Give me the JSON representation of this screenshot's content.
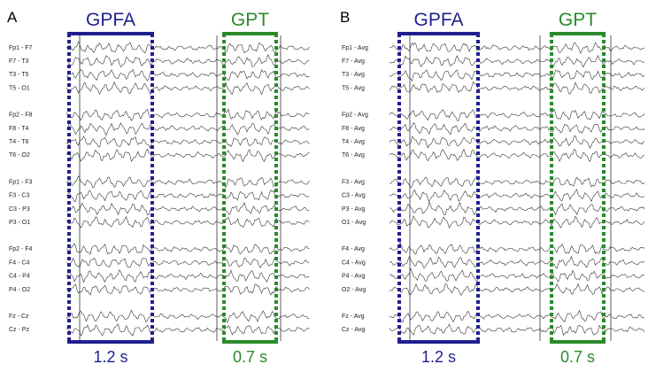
{
  "panels": [
    {
      "label": "A",
      "channels": [
        "Fp1 - F7",
        "F7 - T3",
        "T3 - T5",
        "T5 - O1",
        "Fp2 - F8",
        "F8 - T4",
        "T4 - T6",
        "T6 - O2",
        "Fp1 - F3",
        "F3 - C3",
        "C3 - P3",
        "P3 - O1",
        "Fp2 - F4",
        "F4 - C4",
        "C4 - P4",
        "P4 - O2",
        "Fz - Cz",
        "Cz - Pz"
      ],
      "windows": [
        {
          "title": "GPFA",
          "duration": "1.2 s"
        },
        {
          "title": "GPT",
          "duration": "0.7 s"
        }
      ]
    },
    {
      "label": "B",
      "channels": [
        "Fp1 - Avg",
        "F7 - Avg",
        "T3 - Avg",
        "T5 - Avg",
        "Fp2 - Avg",
        "F8 - Avg",
        "T4 - Avg",
        "T6 - Avg",
        "F3 - Avg",
        "C3 - Avg",
        "P3 - Avg",
        "O1 - Avg",
        "F4 - Avg",
        "C4 - Avg",
        "P4 - Avg",
        "O2 - Avg",
        "Fz - Avg",
        "Cz - Avg"
      ],
      "windows": [
        {
          "title": "GPFA",
          "duration": "1.2 s"
        },
        {
          "title": "GPT",
          "duration": "0.7 s"
        }
      ]
    }
  ]
}
